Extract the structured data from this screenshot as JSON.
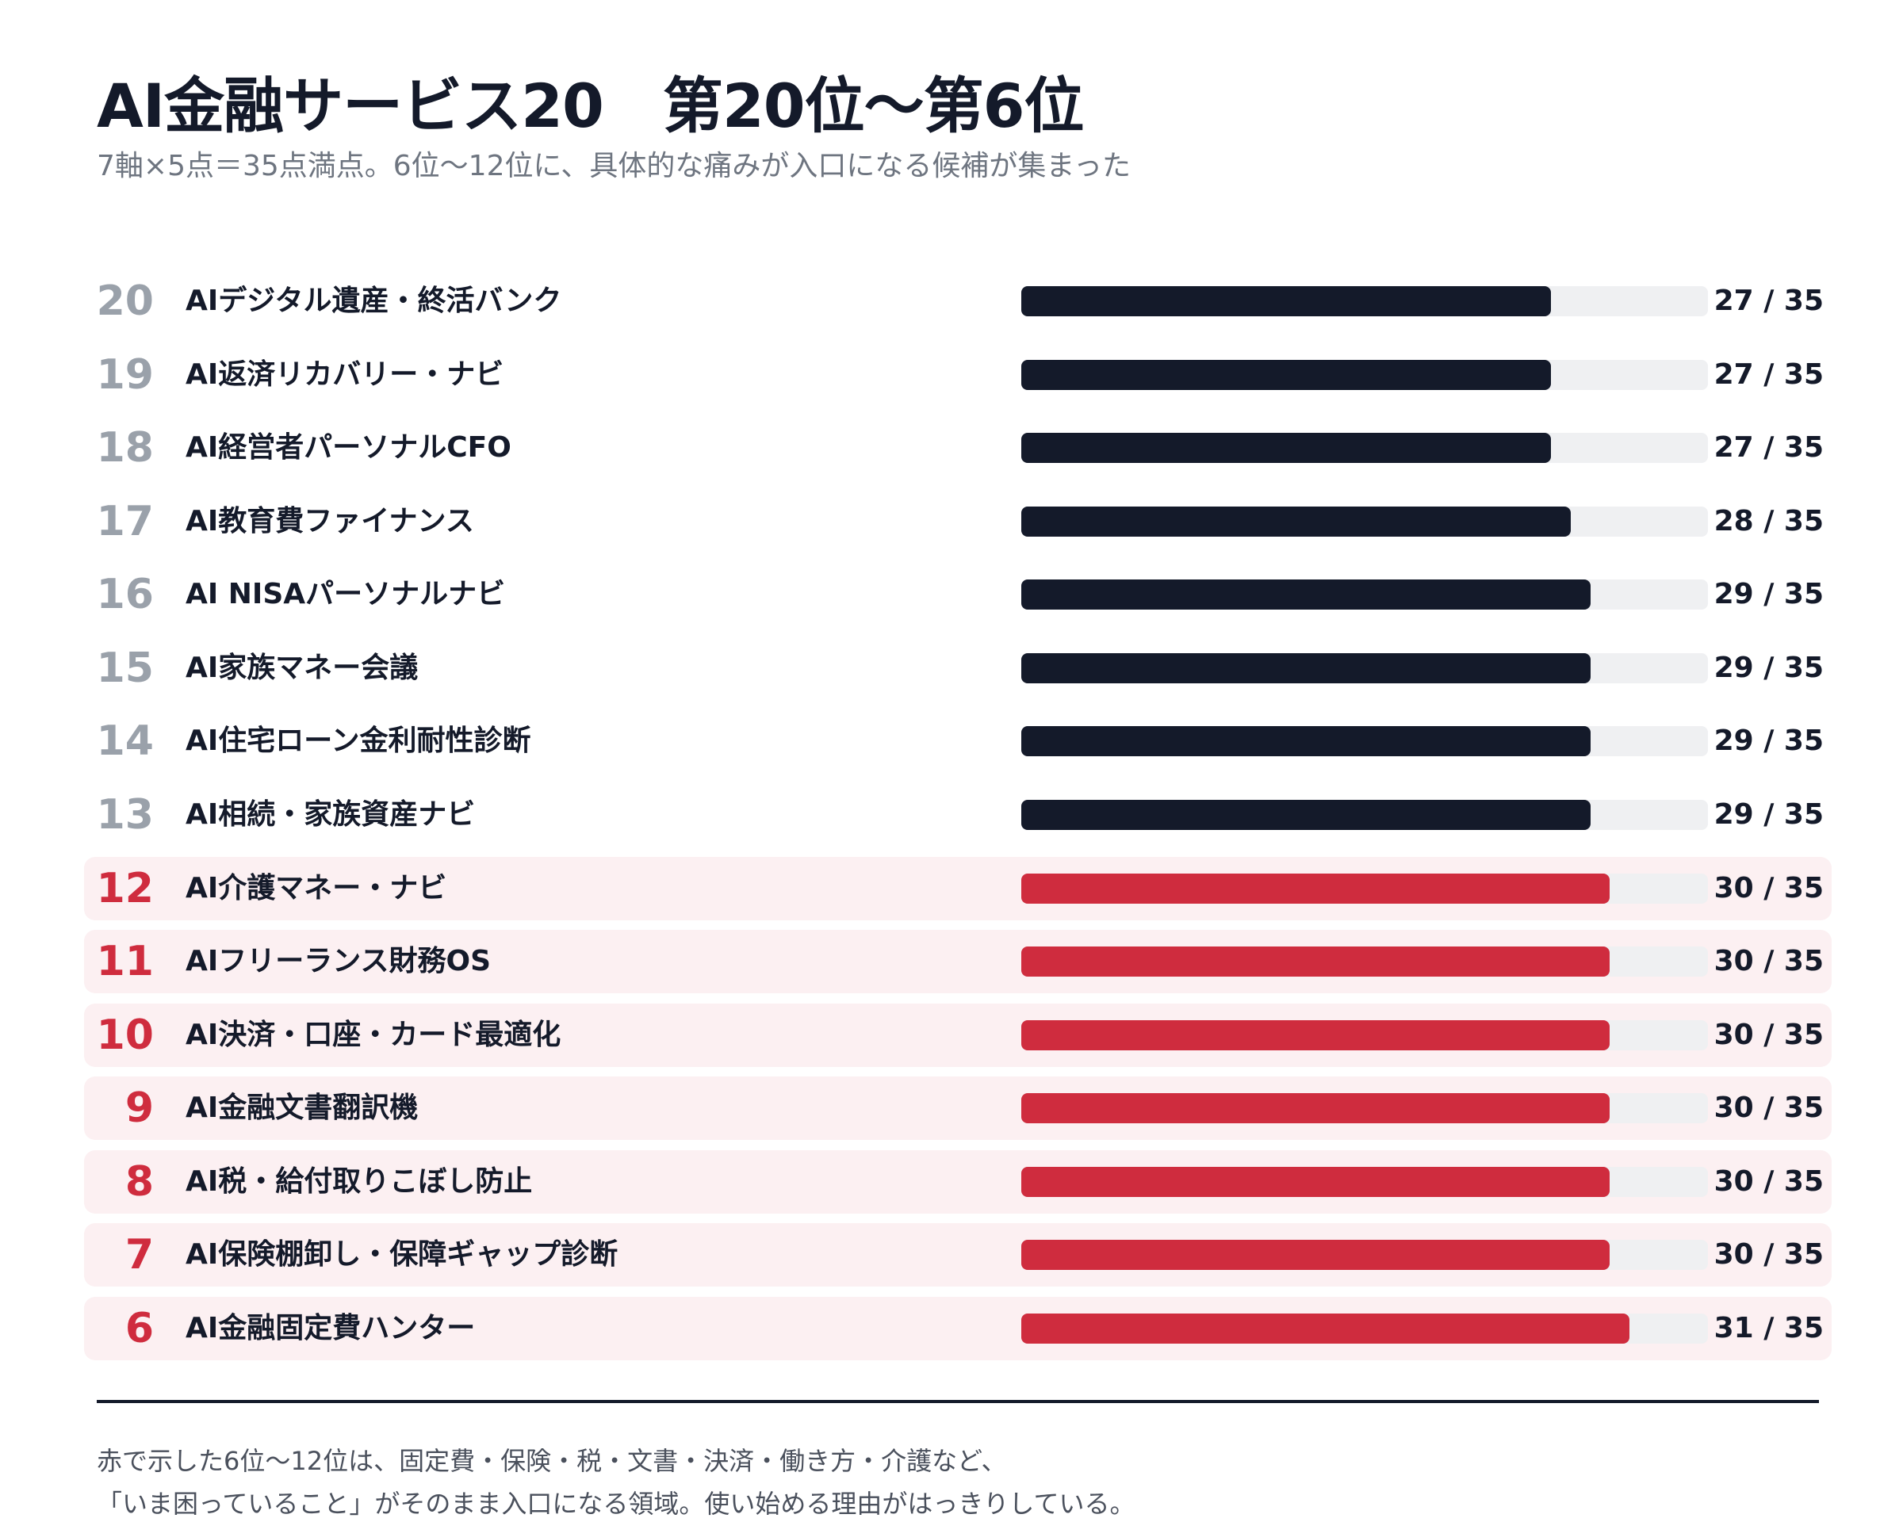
{
  "header": {
    "title": "AI金融サービス20　第20位〜第6位",
    "subtitle": "7軸×5点＝35点満点。6位〜12位に、具体的な痛みが入口になる候補が集まった"
  },
  "colors": {
    "dark_bar": "#141a2a",
    "highlight_bar": "#cf2c3e",
    "highlight_row_bg": "#fcf0f2",
    "track": "#eff0f2"
  },
  "chart_data": {
    "type": "bar",
    "orientation": "horizontal",
    "max": 35,
    "highlighted_ranks": [
      12,
      11,
      10,
      9,
      8,
      7,
      6
    ],
    "rows": [
      {
        "rank": "20",
        "name": "AIデジタル遺産・終活バンク",
        "value": 27,
        "score_label": "27 / 35",
        "highlight": false
      },
      {
        "rank": "19",
        "name": "AI返済リカバリー・ナビ",
        "value": 27,
        "score_label": "27 / 35",
        "highlight": false
      },
      {
        "rank": "18",
        "name": "AI経営者パーソナルCFO",
        "value": 27,
        "score_label": "27 / 35",
        "highlight": false
      },
      {
        "rank": "17",
        "name": "AI教育費ファイナンス",
        "value": 28,
        "score_label": "28 / 35",
        "highlight": false
      },
      {
        "rank": "16",
        "name": "AI NISAパーソナルナビ",
        "value": 29,
        "score_label": "29 / 35",
        "highlight": false
      },
      {
        "rank": "15",
        "name": "AI家族マネー会議",
        "value": 29,
        "score_label": "29 / 35",
        "highlight": false
      },
      {
        "rank": "14",
        "name": "AI住宅ローン金利耐性診断",
        "value": 29,
        "score_label": "29 / 35",
        "highlight": false
      },
      {
        "rank": "13",
        "name": "AI相続・家族資産ナビ",
        "value": 29,
        "score_label": "29 / 35",
        "highlight": false
      },
      {
        "rank": "12",
        "name": "AI介護マネー・ナビ",
        "value": 30,
        "score_label": "30 / 35",
        "highlight": true
      },
      {
        "rank": "11",
        "name": "AIフリーランス財務OS",
        "value": 30,
        "score_label": "30 / 35",
        "highlight": true
      },
      {
        "rank": "10",
        "name": "AI決済・口座・カード最適化",
        "value": 30,
        "score_label": "30 / 35",
        "highlight": true
      },
      {
        "rank": "9",
        "name": "AI金融文書翻訳機",
        "value": 30,
        "score_label": "30 / 35",
        "highlight": true
      },
      {
        "rank": "8",
        "name": "AI税・給付取りこぼし防止",
        "value": 30,
        "score_label": "30 / 35",
        "highlight": true
      },
      {
        "rank": "7",
        "name": "AI保険棚卸し・保障ギャップ診断",
        "value": 30,
        "score_label": "30 / 35",
        "highlight": true
      },
      {
        "rank": "6",
        "name": "AI金融固定費ハンター",
        "value": 31,
        "score_label": "31 / 35",
        "highlight": true
      }
    ]
  },
  "footer": {
    "note_line1": "赤で示した6位〜12位は、固定費・保険・税・文書・決済・働き方・介護など、",
    "note_line2": "「いま困っていること」がそのまま入口になる領域。使い始める理由がはっきりしている。"
  }
}
